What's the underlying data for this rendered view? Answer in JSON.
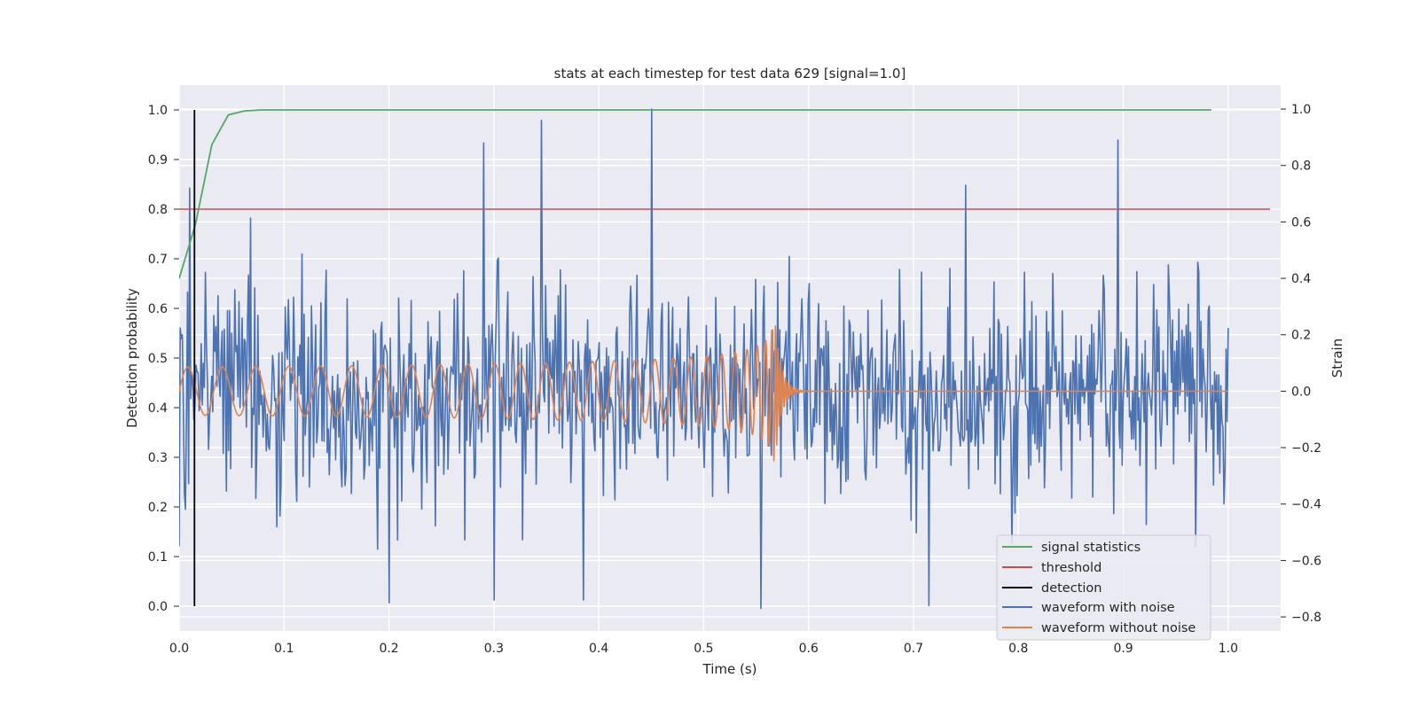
{
  "chart_data": {
    "type": "line",
    "title": "stats at each timestep for test data 629 [signal=1.0]",
    "xlabel": "Time (s)",
    "ylabel_left": "Detection probability",
    "ylabel_right": "Strain",
    "xlim": [
      0.0,
      1.05
    ],
    "ylim_left": [
      -0.05,
      1.05
    ],
    "ylim_right": [
      -0.85,
      1.085
    ],
    "x_ticks": [
      "0.0",
      "0.1",
      "0.2",
      "0.3",
      "0.4",
      "0.5",
      "0.6",
      "0.7",
      "0.8",
      "0.9",
      "1.0"
    ],
    "y_ticks_left": [
      "0.0",
      "0.1",
      "0.2",
      "0.3",
      "0.4",
      "0.5",
      "0.6",
      "0.7",
      "0.8",
      "0.9",
      "1.0"
    ],
    "y_ticks_right": [
      "−0.8",
      "−0.6",
      "−0.4",
      "−0.2",
      "0.0",
      "0.2",
      "0.4",
      "0.6",
      "0.8",
      "1.0"
    ],
    "grid": true,
    "legend_position": "lower-right",
    "legend": [
      "signal statistics",
      "threshold",
      "detection",
      "waveform with noise",
      "waveform without noise"
    ],
    "colors": {
      "signal_statistics": "#55a868",
      "threshold": "#c44e52",
      "detection": "#000000",
      "waveform_with_noise": "#4c72b0",
      "waveform_without_noise": "#dd8452",
      "background": "#eaeaf2",
      "grid": "#ffffff"
    },
    "signal_statistics": {
      "axis": "left",
      "x": [
        0.0,
        0.0156,
        0.0312,
        0.0469,
        0.0625,
        0.078,
        0.1,
        0.2,
        0.3,
        0.4,
        0.5,
        0.6,
        0.7,
        0.8,
        0.9,
        0.984
      ],
      "y": [
        0.66,
        0.77,
        0.93,
        0.99,
        0.998,
        1.0,
        1.0,
        1.0,
        1.0,
        1.0,
        1.0,
        1.0,
        1.0,
        1.0,
        1.0,
        1.0
      ]
    },
    "threshold": {
      "axis": "left",
      "x": [
        0.0,
        1.04
      ],
      "y": [
        0.8,
        0.8
      ]
    },
    "detection": {
      "axis": "left",
      "x": [
        0.0146,
        0.0146
      ],
      "y": [
        0.0,
        1.0
      ]
    },
    "waveform_with_noise": {
      "axis": "right",
      "x_range": [
        0.0,
        1.0
      ],
      "n_points": 1000,
      "approx_std": 0.2,
      "y_range": [
        -0.78,
        1.0
      ],
      "peaks": [
        {
          "x": 0.01,
          "y": 0.72
        },
        {
          "x": 0.29,
          "y": 0.88
        },
        {
          "x": 0.345,
          "y": 0.96
        },
        {
          "x": 0.45,
          "y": 1.0
        },
        {
          "x": 0.75,
          "y": 0.73
        },
        {
          "x": 0.895,
          "y": 0.89
        }
      ],
      "troughs": [
        {
          "x": 0.2,
          "y": -0.75
        },
        {
          "x": 0.3,
          "y": -0.74
        },
        {
          "x": 0.385,
          "y": -0.74
        },
        {
          "x": 0.555,
          "y": -0.77
        },
        {
          "x": 0.715,
          "y": -0.76
        }
      ]
    },
    "waveform_without_noise": {
      "axis": "right",
      "description_free": true,
      "x_range": [
        0.0,
        1.0
      ],
      "merger_time": 0.568,
      "initial_amplitude": 0.085,
      "peak_amplitude": 0.25,
      "initial_frequency_hz": 30,
      "ringdown_end": 0.6
    }
  }
}
